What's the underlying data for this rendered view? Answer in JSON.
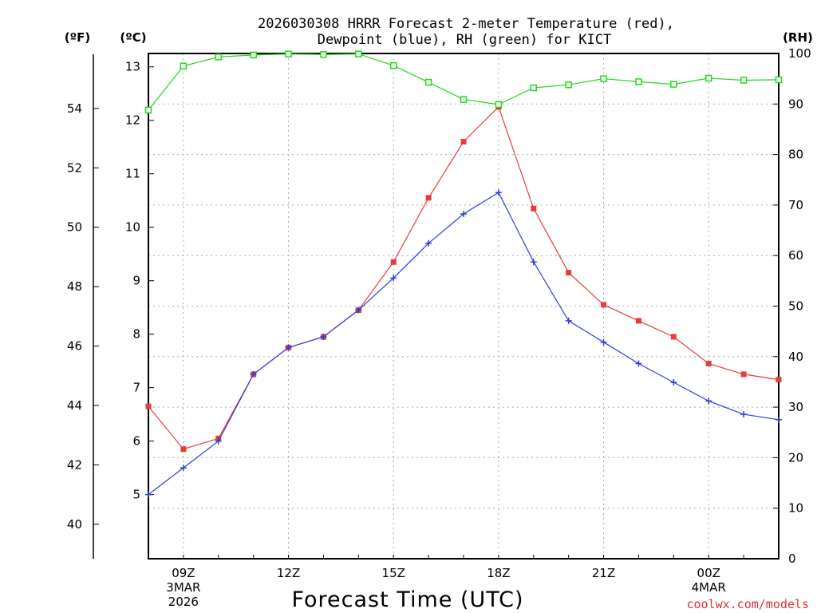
{
  "chart_data": {
    "type": "line",
    "title_line1": "2026030308 HRRR Forecast 2-meter Temperature (red),",
    "title_line2": "Dewpoint (blue), RH (green) for KICT",
    "xlabel": "Forecast Time (UTC)",
    "credit": "coolwx.com/models",
    "units": {
      "fahrenheit": "(ºF)",
      "celsius": "(ºC)",
      "rh": "(RH)"
    },
    "x_start_hour": 8,
    "x_end_hour": 26,
    "x_ticks": [
      {
        "hour": 9,
        "label": "09Z",
        "date1": "3MAR",
        "date2": "2026"
      },
      {
        "hour": 12,
        "label": "12Z"
      },
      {
        "hour": 15,
        "label": "15Z"
      },
      {
        "hour": 18,
        "label": "18Z"
      },
      {
        "hour": 21,
        "label": "21Z"
      },
      {
        "hour": 24,
        "label": "00Z",
        "date1": "4MAR"
      }
    ],
    "ylim_c": [
      3.8,
      13.25
    ],
    "yticks_c": [
      5,
      6,
      7,
      8,
      9,
      10,
      11,
      12,
      13
    ],
    "yticks_f": [
      40,
      42,
      44,
      46,
      48,
      50,
      52,
      54
    ],
    "ylim_rh": [
      0,
      100
    ],
    "yticks_rh": [
      0,
      10,
      20,
      30,
      40,
      50,
      60,
      70,
      80,
      90,
      100
    ],
    "x": [
      8,
      9,
      10,
      11,
      12,
      13,
      14,
      15,
      16,
      17,
      18,
      19,
      20,
      21,
      22,
      23,
      24,
      25,
      26
    ],
    "series": [
      {
        "name": "Temperature",
        "color": "#e83c3c",
        "marker": "square-filled",
        "values": [
          6.65,
          5.85,
          6.05,
          7.25,
          7.75,
          7.95,
          8.45,
          9.35,
          10.55,
          11.6,
          12.25,
          10.35,
          9.15,
          8.55,
          8.25,
          7.95,
          7.45,
          7.25,
          7.15
        ]
      },
      {
        "name": "Dewpoint",
        "color": "#2e3fd8",
        "marker": "plus",
        "values": [
          5.0,
          5.5,
          6.0,
          7.25,
          7.75,
          7.95,
          8.45,
          9.05,
          9.7,
          10.25,
          10.65,
          9.35,
          8.25,
          7.85,
          7.45,
          7.1,
          6.75,
          6.5,
          6.4
        ]
      },
      {
        "name": "Relative Humidity",
        "color": "#22d81c",
        "marker": "square-open",
        "axis": "rh",
        "values": [
          88.8,
          97.5,
          99.3,
          99.7,
          99.9,
          99.8,
          99.9,
          97.6,
          94.3,
          90.9,
          89.9,
          93.2,
          93.8,
          95.0,
          94.4,
          93.9,
          95.1,
          94.7,
          94.8
        ]
      }
    ]
  }
}
